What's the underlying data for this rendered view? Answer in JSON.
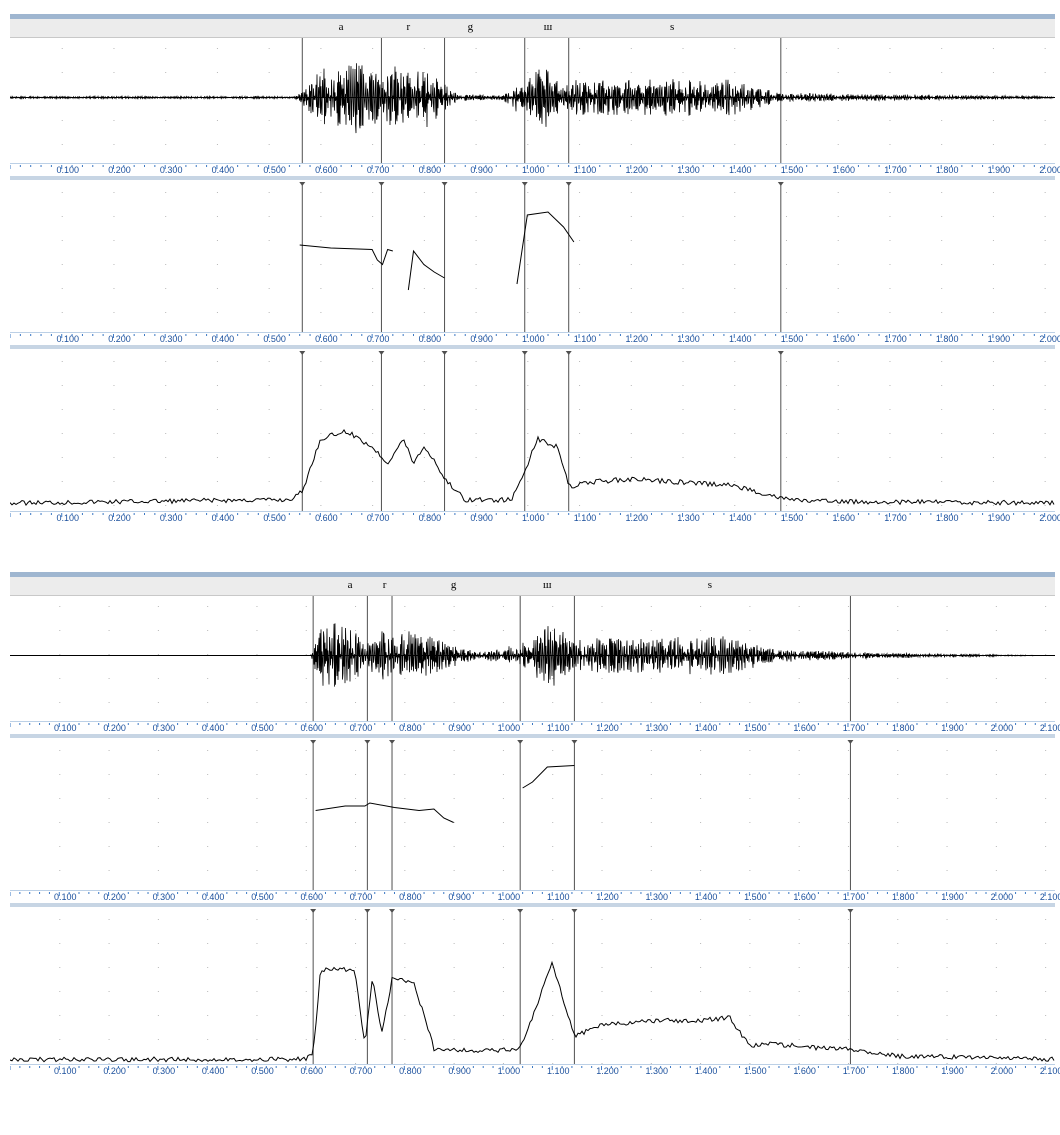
{
  "panels": [
    {
      "id": "top",
      "segment_labels": [
        "a",
        "r",
        "g",
        "ш",
        "s"
      ],
      "segment_label_times": [
        0.64,
        0.77,
        0.89,
        1.04,
        1.28
      ],
      "boundaries": [
        0.565,
        0.718,
        0.84,
        0.995,
        1.08,
        1.49
      ],
      "ruler": {
        "min": 0.0,
        "max": 2.02,
        "ticks": [
          "0.100",
          "0.200",
          "0.300",
          "0.400",
          "0.500",
          "0.600",
          "0.700",
          "0.800",
          "0.900",
          "1.000",
          "1.100",
          "1.200",
          "1.300",
          "1.400",
          "1.500",
          "1.600",
          "1.700",
          "1.800",
          "1.900",
          "2.000"
        ]
      },
      "waveform_envelope": [
        [
          0.0,
          0.02
        ],
        [
          0.55,
          0.02
        ],
        [
          0.565,
          0.1
        ],
        [
          0.6,
          0.55
        ],
        [
          0.68,
          0.65
        ],
        [
          0.718,
          0.45
        ],
        [
          0.75,
          0.55
        ],
        [
          0.8,
          0.55
        ],
        [
          0.84,
          0.25
        ],
        [
          0.87,
          0.06
        ],
        [
          0.95,
          0.05
        ],
        [
          0.995,
          0.35
        ],
        [
          1.03,
          0.55
        ],
        [
          1.08,
          0.3
        ],
        [
          1.2,
          0.3
        ],
        [
          1.3,
          0.35
        ],
        [
          1.4,
          0.3
        ],
        [
          1.49,
          0.08
        ],
        [
          2.02,
          0.02
        ]
      ],
      "pitch_segments": [
        [
          [
            0.56,
            0.42
          ],
          [
            0.62,
            0.44
          ],
          [
            0.7,
            0.45
          ],
          [
            0.71,
            0.52
          ],
          [
            0.72,
            0.55
          ],
          [
            0.73,
            0.45
          ],
          [
            0.74,
            0.46
          ]
        ],
        [
          [
            0.77,
            0.72
          ],
          [
            0.78,
            0.46
          ],
          [
            0.8,
            0.55
          ],
          [
            0.82,
            0.6
          ],
          [
            0.84,
            0.64
          ]
        ],
        [
          [
            0.98,
            0.68
          ],
          [
            1.0,
            0.22
          ],
          [
            1.04,
            0.2
          ],
          [
            1.07,
            0.3
          ],
          [
            1.09,
            0.4
          ]
        ]
      ],
      "intensity": [
        [
          0.0,
          0.95
        ],
        [
          0.5,
          0.93
        ],
        [
          0.54,
          0.93
        ],
        [
          0.565,
          0.88
        ],
        [
          0.6,
          0.55
        ],
        [
          0.65,
          0.5
        ],
        [
          0.7,
          0.6
        ],
        [
          0.73,
          0.7
        ],
        [
          0.76,
          0.55
        ],
        [
          0.78,
          0.7
        ],
        [
          0.8,
          0.6
        ],
        [
          0.82,
          0.68
        ],
        [
          0.84,
          0.8
        ],
        [
          0.88,
          0.93
        ],
        [
          0.97,
          0.93
        ],
        [
          0.995,
          0.75
        ],
        [
          1.02,
          0.55
        ],
        [
          1.06,
          0.6
        ],
        [
          1.08,
          0.85
        ],
        [
          1.12,
          0.82
        ],
        [
          1.2,
          0.8
        ],
        [
          1.3,
          0.82
        ],
        [
          1.4,
          0.84
        ],
        [
          1.49,
          0.92
        ],
        [
          1.55,
          0.94
        ],
        [
          2.02,
          0.95
        ]
      ]
    },
    {
      "id": "bottom",
      "segment_labels": [
        "a",
        "r",
        "g",
        "ш",
        "s"
      ],
      "segment_label_times": [
        0.69,
        0.76,
        0.9,
        1.09,
        1.42
      ],
      "boundaries": [
        0.615,
        0.725,
        0.775,
        1.035,
        1.145,
        1.705
      ],
      "ruler": {
        "min": 0.0,
        "max": 2.12,
        "ticks": [
          "0.100",
          "0.200",
          "0.300",
          "0.400",
          "0.500",
          "0.600",
          "0.700",
          "0.800",
          "0.900",
          "1.000",
          "1.100",
          "1.200",
          "1.300",
          "1.400",
          "1.500",
          "1.600",
          "1.700",
          "1.800",
          "1.900",
          "2.000",
          "2.100"
        ]
      },
      "waveform_envelope": [
        [
          0.0,
          0.0
        ],
        [
          0.61,
          0.0
        ],
        [
          0.615,
          0.2
        ],
        [
          0.64,
          0.6
        ],
        [
          0.7,
          0.45
        ],
        [
          0.725,
          0.2
        ],
        [
          0.745,
          0.55
        ],
        [
          0.775,
          0.3
        ],
        [
          0.82,
          0.45
        ],
        [
          0.88,
          0.25
        ],
        [
          0.95,
          0.05
        ],
        [
          1.035,
          0.2
        ],
        [
          1.1,
          0.55
        ],
        [
          1.145,
          0.3
        ],
        [
          1.3,
          0.3
        ],
        [
          1.45,
          0.35
        ],
        [
          1.55,
          0.12
        ],
        [
          1.705,
          0.06
        ],
        [
          1.9,
          0.03
        ],
        [
          2.12,
          0.0
        ]
      ],
      "pitch_segments": [
        [
          [
            0.62,
            0.47
          ],
          [
            0.68,
            0.44
          ],
          [
            0.72,
            0.44
          ],
          [
            0.73,
            0.42
          ],
          [
            0.78,
            0.45
          ],
          [
            0.83,
            0.47
          ],
          [
            0.86,
            0.46
          ],
          [
            0.88,
            0.52
          ],
          [
            0.9,
            0.55
          ]
        ],
        [
          [
            1.04,
            0.32
          ],
          [
            1.06,
            0.28
          ],
          [
            1.09,
            0.18
          ],
          [
            1.145,
            0.17
          ]
        ]
      ],
      "intensity": [
        [
          0.0,
          0.97
        ],
        [
          0.6,
          0.97
        ],
        [
          0.615,
          0.93
        ],
        [
          0.63,
          0.4
        ],
        [
          0.65,
          0.38
        ],
        [
          0.7,
          0.4
        ],
        [
          0.72,
          0.88
        ],
        [
          0.735,
          0.45
        ],
        [
          0.755,
          0.8
        ],
        [
          0.775,
          0.45
        ],
        [
          0.82,
          0.48
        ],
        [
          0.86,
          0.9
        ],
        [
          0.95,
          0.92
        ],
        [
          1.035,
          0.9
        ],
        [
          1.06,
          0.7
        ],
        [
          1.1,
          0.35
        ],
        [
          1.145,
          0.82
        ],
        [
          1.2,
          0.75
        ],
        [
          1.3,
          0.72
        ],
        [
          1.4,
          0.72
        ],
        [
          1.46,
          0.7
        ],
        [
          1.5,
          0.88
        ],
        [
          1.55,
          0.87
        ],
        [
          1.65,
          0.9
        ],
        [
          1.705,
          0.9
        ],
        [
          1.8,
          0.95
        ],
        [
          2.0,
          0.96
        ],
        [
          2.12,
          0.97
        ]
      ]
    }
  ]
}
